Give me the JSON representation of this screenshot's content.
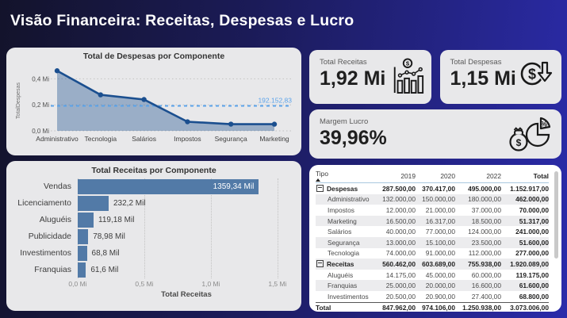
{
  "header": {
    "title": "Visão Financeira: Receitas, Despesas e Lucro"
  },
  "kpis": [
    {
      "label": "Total Receitas",
      "value": "1,92 Mi",
      "icon": "bar-chart-coin-icon"
    },
    {
      "label": "Total Despesas",
      "value": "1,15 Mi",
      "icon": "dollar-circle-down-arrow-icon"
    },
    {
      "label": "Margem Lucro",
      "value": "39,96%",
      "icon": "money-bag-pie-percent-icon"
    }
  ],
  "chart_data": [
    {
      "id": "despesas-area",
      "type": "area",
      "title": "Total de Despesas por Componente",
      "categories": [
        "Administrativo",
        "Tecnologia",
        "Salários",
        "Impostos",
        "Segurança",
        "Marketing"
      ],
      "values": [
        462000,
        277000,
        241000,
        70000,
        51600,
        51317
      ],
      "ylabel": "TotalDespesas",
      "yticks": [
        {
          "label": "0,0 Mi",
          "value": 0
        },
        {
          "label": "0,2 Mi",
          "value": 200000
        },
        {
          "label": "0,4 Mi",
          "value": 400000
        }
      ],
      "ylim": [
        0,
        500000
      ],
      "grid": "dotted",
      "average_line": {
        "value": 192152.83,
        "label": "192.152,83",
        "color": "#5ba3ea"
      },
      "line_color": "#1b4f8f",
      "area_color": "rgba(27,79,143,0.38)"
    },
    {
      "id": "receitas-bar",
      "type": "bar",
      "orientation": "horizontal",
      "title": "Total Receitas por Componente",
      "categories": [
        "Vendas",
        "Licenciamento",
        "Aluguéis",
        "Publicidade",
        "Investimentos",
        "Franquias"
      ],
      "values": [
        1359340,
        232200,
        119180,
        78980,
        68800,
        61600
      ],
      "value_labels": [
        "1359,34 Mil",
        "232,2 Mil",
        "119,18 Mil",
        "78,98 Mil",
        "68,8 Mil",
        "61,6 Mil"
      ],
      "xlabel": "Total Receitas",
      "xticks": [
        {
          "label": "0,0 Mi",
          "value": 0
        },
        {
          "label": "0,5 Mi",
          "value": 500000
        },
        {
          "label": "1,0 Mi",
          "value": 1000000
        },
        {
          "label": "1,5 Mi",
          "value": 1500000
        }
      ],
      "xlim": [
        0,
        1560000
      ],
      "grid": "dotted",
      "bar_color": "#527aa7"
    },
    {
      "id": "matrix-table",
      "type": "table",
      "columns": [
        "Tipo",
        "2019",
        "2020",
        "2022",
        "Total"
      ],
      "rows": [
        {
          "name": "Despesas",
          "group": true,
          "values": [
            "287.500,00",
            "370.417,00",
            "495.000,00",
            "1.152.917,00"
          ]
        },
        {
          "name": "Administrativo",
          "group": false,
          "values": [
            "132.000,00",
            "150.000,00",
            "180.000,00",
            "462.000,00"
          ]
        },
        {
          "name": "Impostos",
          "group": false,
          "values": [
            "12.000,00",
            "21.000,00",
            "37.000,00",
            "70.000,00"
          ]
        },
        {
          "name": "Marketing",
          "group": false,
          "values": [
            "16.500,00",
            "16.317,00",
            "18.500,00",
            "51.317,00"
          ]
        },
        {
          "name": "Salários",
          "group": false,
          "values": [
            "40.000,00",
            "77.000,00",
            "124.000,00",
            "241.000,00"
          ]
        },
        {
          "name": "Segurança",
          "group": false,
          "values": [
            "13.000,00",
            "15.100,00",
            "23.500,00",
            "51.600,00"
          ]
        },
        {
          "name": "Tecnologia",
          "group": false,
          "values": [
            "74.000,00",
            "91.000,00",
            "112.000,00",
            "277.000,00"
          ]
        },
        {
          "name": "Receitas",
          "group": true,
          "values": [
            "560.462,00",
            "603.689,00",
            "755.938,00",
            "1.920.089,00"
          ]
        },
        {
          "name": "Aluguéis",
          "group": false,
          "values": [
            "14.175,00",
            "45.000,00",
            "60.000,00",
            "119.175,00"
          ]
        },
        {
          "name": "Franquias",
          "group": false,
          "values": [
            "25.000,00",
            "20.000,00",
            "16.600,00",
            "61.600,00"
          ]
        },
        {
          "name": "Investimentos",
          "group": false,
          "values": [
            "20.500,00",
            "20.900,00",
            "27.400,00",
            "68.800,00"
          ]
        }
      ],
      "total_row": {
        "name": "Total",
        "values": [
          "847.962,00",
          "974.106,00",
          "1.250.938,00",
          "3.073.006,00"
        ]
      }
    }
  ]
}
